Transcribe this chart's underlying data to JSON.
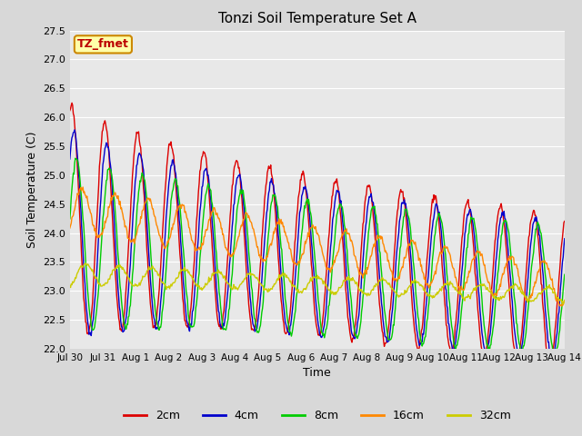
{
  "title": "Tonzi Soil Temperature Set A",
  "xlabel": "Time",
  "ylabel": "Soil Temperature (C)",
  "ylim": [
    22.0,
    27.5
  ],
  "yticks": [
    22.0,
    22.5,
    23.0,
    23.5,
    24.0,
    24.5,
    25.0,
    25.5,
    26.0,
    26.5,
    27.0,
    27.5
  ],
  "xtick_labels": [
    "Jul 30",
    "Jul 31",
    "Aug 1",
    "Aug 2",
    "Aug 3",
    "Aug 4",
    "Aug 5",
    "Aug 6",
    "Aug 7",
    "Aug 8",
    "Aug 9",
    "Aug 10",
    "Aug 11",
    "Aug 12",
    "Aug 13",
    "Aug 14"
  ],
  "colors": {
    "2cm": "#dd0000",
    "4cm": "#0000cc",
    "8cm": "#00cc00",
    "16cm": "#ff8800",
    "32cm": "#cccc00"
  },
  "annotation_text": "TZ_fmet",
  "annotation_bg": "#ffffaa",
  "annotation_border": "#cc8800",
  "plot_bg": "#e8e8e8",
  "fig_bg": "#d8d8d8"
}
